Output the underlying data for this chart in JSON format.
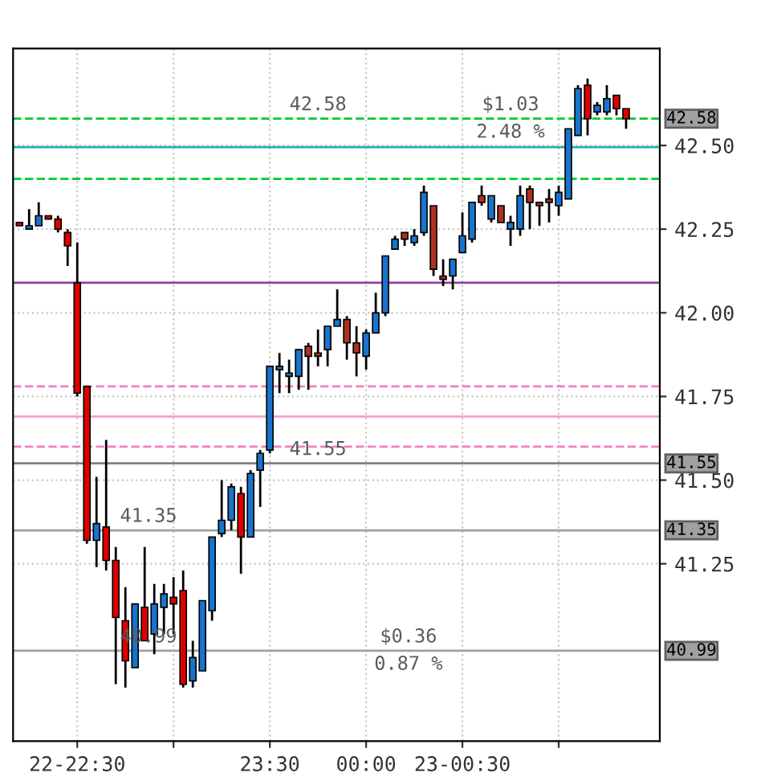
{
  "chart_data": {
    "type": "candlestick",
    "x": [
      22.2,
      22.25,
      22.3,
      22.35,
      22.4,
      22.45,
      22.5,
      22.55,
      22.6,
      22.65,
      22.7,
      22.75,
      22.8,
      22.85,
      22.9,
      22.95,
      23.0,
      23.05,
      23.1,
      23.15,
      23.2,
      23.25,
      23.3,
      23.35,
      23.4,
      23.45,
      23.5,
      23.55,
      23.6,
      23.65,
      23.7,
      23.75,
      23.8,
      23.85,
      23.9,
      23.95,
      24.0,
      24.05,
      24.1,
      24.15,
      24.2,
      24.25,
      24.3,
      24.35,
      24.4,
      24.45,
      24.5,
      24.55,
      24.6,
      24.65,
      24.7,
      24.75,
      24.8,
      24.85,
      24.9,
      24.95,
      25.0,
      25.05,
      25.1,
      25.15,
      25.2,
      25.25,
      25.3,
      25.35
    ],
    "ohlc": [
      [
        42.27,
        42.27,
        42.26,
        42.26
      ],
      [
        42.25,
        42.31,
        42.25,
        42.26
      ],
      [
        42.26,
        42.33,
        42.26,
        42.29
      ],
      [
        42.29,
        42.29,
        42.28,
        42.28
      ],
      [
        42.28,
        42.29,
        42.24,
        42.25
      ],
      [
        42.24,
        42.25,
        42.14,
        42.2
      ],
      [
        42.09,
        42.21,
        41.75,
        41.76
      ],
      [
        41.78,
        41.78,
        41.31,
        41.32
      ],
      [
        41.32,
        41.51,
        41.24,
        41.37
      ],
      [
        41.36,
        41.62,
        41.23,
        41.26
      ],
      [
        41.26,
        41.3,
        40.89,
        41.09
      ],
      [
        41.08,
        41.18,
        40.88,
        40.96
      ],
      [
        40.94,
        41.13,
        40.94,
        41.13
      ],
      [
        41.12,
        41.3,
        41.02,
        41.02
      ],
      [
        41.04,
        41.19,
        40.98,
        41.13
      ],
      [
        41.12,
        41.19,
        41.04,
        41.16
      ],
      [
        41.15,
        41.21,
        41.04,
        41.13
      ],
      [
        41.17,
        41.23,
        40.88,
        40.89
      ],
      [
        40.9,
        41.02,
        40.88,
        40.97
      ],
      [
        40.93,
        41.14,
        40.93,
        41.14
      ],
      [
        41.11,
        41.33,
        41.08,
        41.33
      ],
      [
        41.34,
        41.5,
        41.33,
        41.38
      ],
      [
        41.38,
        41.49,
        41.35,
        41.48
      ],
      [
        41.46,
        41.48,
        41.22,
        41.33
      ],
      [
        41.33,
        41.53,
        41.33,
        41.52
      ],
      [
        41.53,
        41.59,
        41.42,
        41.58
      ],
      [
        41.59,
        41.84,
        41.58,
        41.84
      ],
      [
        41.83,
        41.88,
        41.76,
        41.84
      ],
      [
        41.81,
        41.86,
        41.76,
        41.82
      ],
      [
        41.81,
        41.89,
        41.77,
        41.89
      ],
      [
        41.9,
        41.91,
        41.77,
        41.87
      ],
      [
        41.88,
        41.95,
        41.84,
        41.87
      ],
      [
        41.89,
        41.96,
        41.84,
        41.96
      ],
      [
        41.96,
        42.07,
        41.96,
        41.98
      ],
      [
        41.98,
        41.99,
        41.86,
        41.91
      ],
      [
        41.91,
        41.96,
        41.81,
        41.88
      ],
      [
        41.87,
        41.95,
        41.83,
        41.94
      ],
      [
        41.94,
        42.06,
        41.94,
        42.0
      ],
      [
        42.0,
        42.17,
        41.99,
        42.17
      ],
      [
        42.19,
        42.23,
        42.19,
        42.22
      ],
      [
        42.24,
        42.24,
        42.2,
        42.22
      ],
      [
        42.21,
        42.25,
        42.2,
        42.23
      ],
      [
        42.24,
        42.38,
        42.23,
        42.36
      ],
      [
        42.32,
        42.32,
        42.11,
        42.13
      ],
      [
        42.11,
        42.16,
        42.08,
        42.1
      ],
      [
        42.11,
        42.16,
        42.07,
        42.16
      ],
      [
        42.18,
        42.3,
        42.18,
        42.23
      ],
      [
        42.22,
        42.33,
        42.21,
        42.33
      ],
      [
        42.35,
        42.38,
        42.32,
        42.33
      ],
      [
        42.28,
        42.35,
        42.27,
        42.35
      ],
      [
        42.32,
        42.32,
        42.27,
        42.27
      ],
      [
        42.25,
        42.29,
        42.2,
        42.27
      ],
      [
        42.25,
        42.38,
        42.23,
        42.35
      ],
      [
        42.37,
        42.38,
        42.25,
        42.33
      ],
      [
        42.33,
        42.33,
        42.26,
        42.32
      ],
      [
        42.34,
        42.37,
        42.27,
        42.33
      ],
      [
        42.32,
        42.38,
        42.29,
        42.36
      ],
      [
        42.34,
        42.55,
        42.34,
        42.55
      ],
      [
        42.53,
        42.68,
        42.53,
        42.67
      ],
      [
        42.68,
        42.7,
        42.53,
        42.58
      ],
      [
        42.6,
        42.63,
        42.59,
        42.62
      ],
      [
        42.6,
        42.68,
        42.59,
        42.64
      ],
      [
        42.65,
        42.65,
        42.59,
        42.61
      ],
      [
        42.61,
        42.61,
        42.55,
        42.58
      ]
    ],
    "colors": [
      "#e00000",
      "#1874cd",
      "#1874cd",
      "#e00000",
      "#e00000",
      "#e00000",
      "#e00000",
      "#e00000",
      "#1874cd",
      "#e00000",
      "#e00000",
      "#e00000",
      "#1874cd",
      "#e00000",
      "#1874cd",
      "#1874cd",
      "#e00000",
      "#e00000",
      "#1874cd",
      "#1874cd",
      "#1874cd",
      "#1874cd",
      "#1874cd",
      "#e00000",
      "#1874cd",
      "#1874cd",
      "#1874cd",
      "#1874cd",
      "#1874cd",
      "#1874cd",
      "#b03020",
      "#b03020",
      "#1874cd",
      "#1874cd",
      "#b03020",
      "#b03020",
      "#1874cd",
      "#1874cd",
      "#1874cd",
      "#1874cd",
      "#b03020",
      "#1874cd",
      "#1874cd",
      "#b03020",
      "#b03020",
      "#1874cd",
      "#1874cd",
      "#1874cd",
      "#b03020",
      "#1874cd",
      "#b03020",
      "#1874cd",
      "#1874cd",
      "#b03020",
      "#b03020",
      "#b03020",
      "#1874cd",
      "#1874cd",
      "#1874cd",
      "#e00000",
      "#1874cd",
      "#1874cd",
      "#e00000",
      "#e00000"
    ],
    "xlim": [
      22.1667,
      25.525
    ],
    "xticks": [
      {
        "value": 22.5,
        "label": "22-22:30"
      },
      {
        "value": 23.0,
        "label": null
      },
      {
        "value": 23.5,
        "label": "23:30"
      },
      {
        "value": 24.0,
        "label": "00:00"
      },
      {
        "value": 24.5,
        "label": "23-00:30"
      },
      {
        "value": 25.0,
        "label": null
      }
    ],
    "ylim": [
      40.72,
      42.79
    ],
    "yticks": [
      {
        "value": 41.25,
        "label": "41.25"
      },
      {
        "value": 41.5,
        "label": "41.50"
      },
      {
        "value": 41.75,
        "label": "41.75"
      },
      {
        "value": 42.0,
        "label": "42.00"
      },
      {
        "value": 42.25,
        "label": "42.25"
      },
      {
        "value": 42.5,
        "label": "42.50"
      }
    ],
    "grid": true,
    "ref_lines": [
      {
        "axis": "y",
        "value": 42.58,
        "label": "42.58",
        "color": "#00cc33",
        "line_style": "dashed"
      },
      {
        "axis": "y",
        "value": 42.495,
        "label": null,
        "color": "#20b0b0",
        "line_style": "solid"
      },
      {
        "axis": "y",
        "value": 42.4,
        "label": null,
        "color": "#00cc33",
        "line_style": "dashed"
      },
      {
        "axis": "y",
        "value": 42.09,
        "label": null,
        "color": "#9040a0",
        "line_style": "solid"
      },
      {
        "axis": "y",
        "value": 41.78,
        "label": null,
        "color": "#f080c0",
        "line_style": "dashed"
      },
      {
        "axis": "y",
        "value": 41.69,
        "label": null,
        "color": "#f0a0d0",
        "line_style": "solid"
      },
      {
        "axis": "y",
        "value": 41.6,
        "label": null,
        "color": "#f080c0",
        "line_style": "dashed"
      },
      {
        "axis": "y",
        "value": 41.55,
        "label": "41.55",
        "color": "#808080",
        "line_style": "solid"
      },
      {
        "axis": "y",
        "value": 41.35,
        "label": "41.35",
        "color": "#a0a0a0",
        "line_style": "solid"
      },
      {
        "axis": "y",
        "value": 40.99,
        "label": "40.99",
        "color": "#a0a0a0",
        "line_style": "solid"
      }
    ],
    "annotations": [
      {
        "text": "42.58",
        "x": 23.75,
        "y": 42.58
      },
      {
        "text": "41.55",
        "x": 23.75,
        "y": 41.55
      },
      {
        "text": "$1.03",
        "x": 24.75,
        "y": 42.58
      },
      {
        "text": "2.48 %",
        "x": 24.75,
        "y": 42.58
      },
      {
        "text": "41.35",
        "x": 22.87,
        "y": 41.35
      },
      {
        "text": "40.99",
        "x": 22.87,
        "y": 40.99
      },
      {
        "text": "$0.36",
        "x": 24.22,
        "y": 40.99
      },
      {
        "text": "0.87 %",
        "x": 24.22,
        "y": 40.99
      }
    ]
  }
}
